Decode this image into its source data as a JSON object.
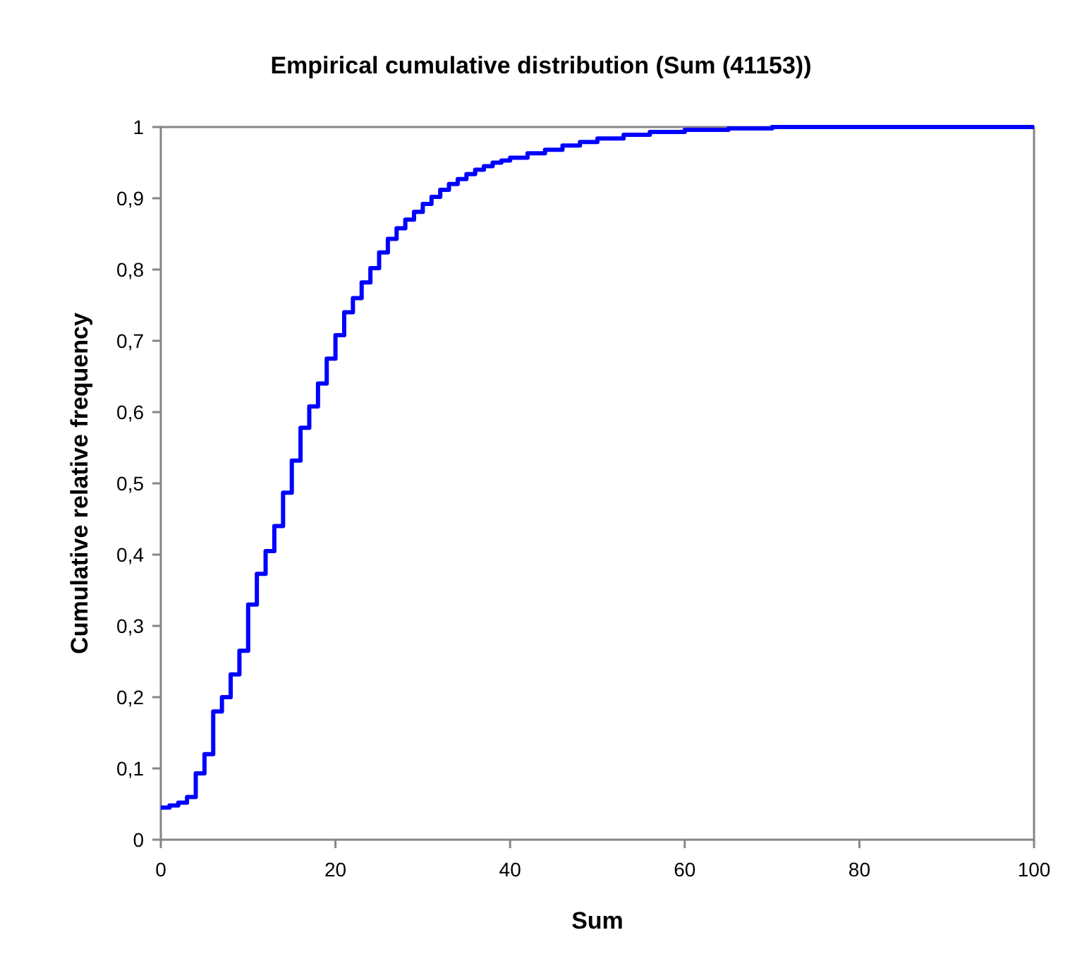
{
  "chart_data": {
    "type": "step",
    "title": "Empirical cumulative distribution (Sum (41153))",
    "xlabel": "Sum",
    "ylabel": "Cumulative relative frequency",
    "xlim": [
      0,
      100
    ],
    "xticks": [
      0,
      20,
      40,
      60,
      80,
      100
    ],
    "ylim": [
      0,
      1
    ],
    "yticks": [
      0,
      {
        "value": 0.1,
        "label": "0,1"
      },
      {
        "value": 0.2,
        "label": "0,2"
      },
      {
        "value": 0.3,
        "label": "0,3"
      },
      {
        "value": 0.4,
        "label": "0,4"
      },
      {
        "value": 0.5,
        "label": "0,5"
      },
      {
        "value": 0.6,
        "label": "0,6"
      },
      {
        "value": 0.7,
        "label": "0,7"
      },
      {
        "value": 0.8,
        "label": "0,8"
      },
      {
        "value": 0.9,
        "label": "0,9"
      },
      1
    ],
    "marker": "none",
    "line_style": "solid",
    "series": [
      {
        "color": "#0000ff",
        "x": [
          0,
          1,
          2,
          3,
          4,
          5,
          6,
          7,
          8,
          9,
          10,
          11,
          12,
          13,
          14,
          15,
          16,
          17,
          18,
          19,
          20,
          21,
          22,
          23,
          24,
          25,
          26,
          27,
          28,
          29,
          30,
          31,
          32,
          33,
          34,
          35,
          36,
          37,
          38,
          39,
          40,
          42,
          44,
          46,
          48,
          50,
          53,
          56,
          60,
          65,
          70,
          100
        ],
        "values": [
          0.045,
          0.048,
          0.052,
          0.06,
          0.093,
          0.12,
          0.18,
          0.2,
          0.232,
          0.265,
          0.33,
          0.373,
          0.405,
          0.44,
          0.487,
          0.532,
          0.578,
          0.608,
          0.64,
          0.675,
          0.708,
          0.74,
          0.76,
          0.782,
          0.802,
          0.824,
          0.843,
          0.858,
          0.87,
          0.881,
          0.892,
          0.902,
          0.912,
          0.92,
          0.927,
          0.934,
          0.94,
          0.945,
          0.95,
          0.953,
          0.957,
          0.963,
          0.968,
          0.974,
          0.979,
          0.984,
          0.989,
          0.993,
          0.996,
          0.998,
          1,
          1
        ]
      }
    ]
  }
}
